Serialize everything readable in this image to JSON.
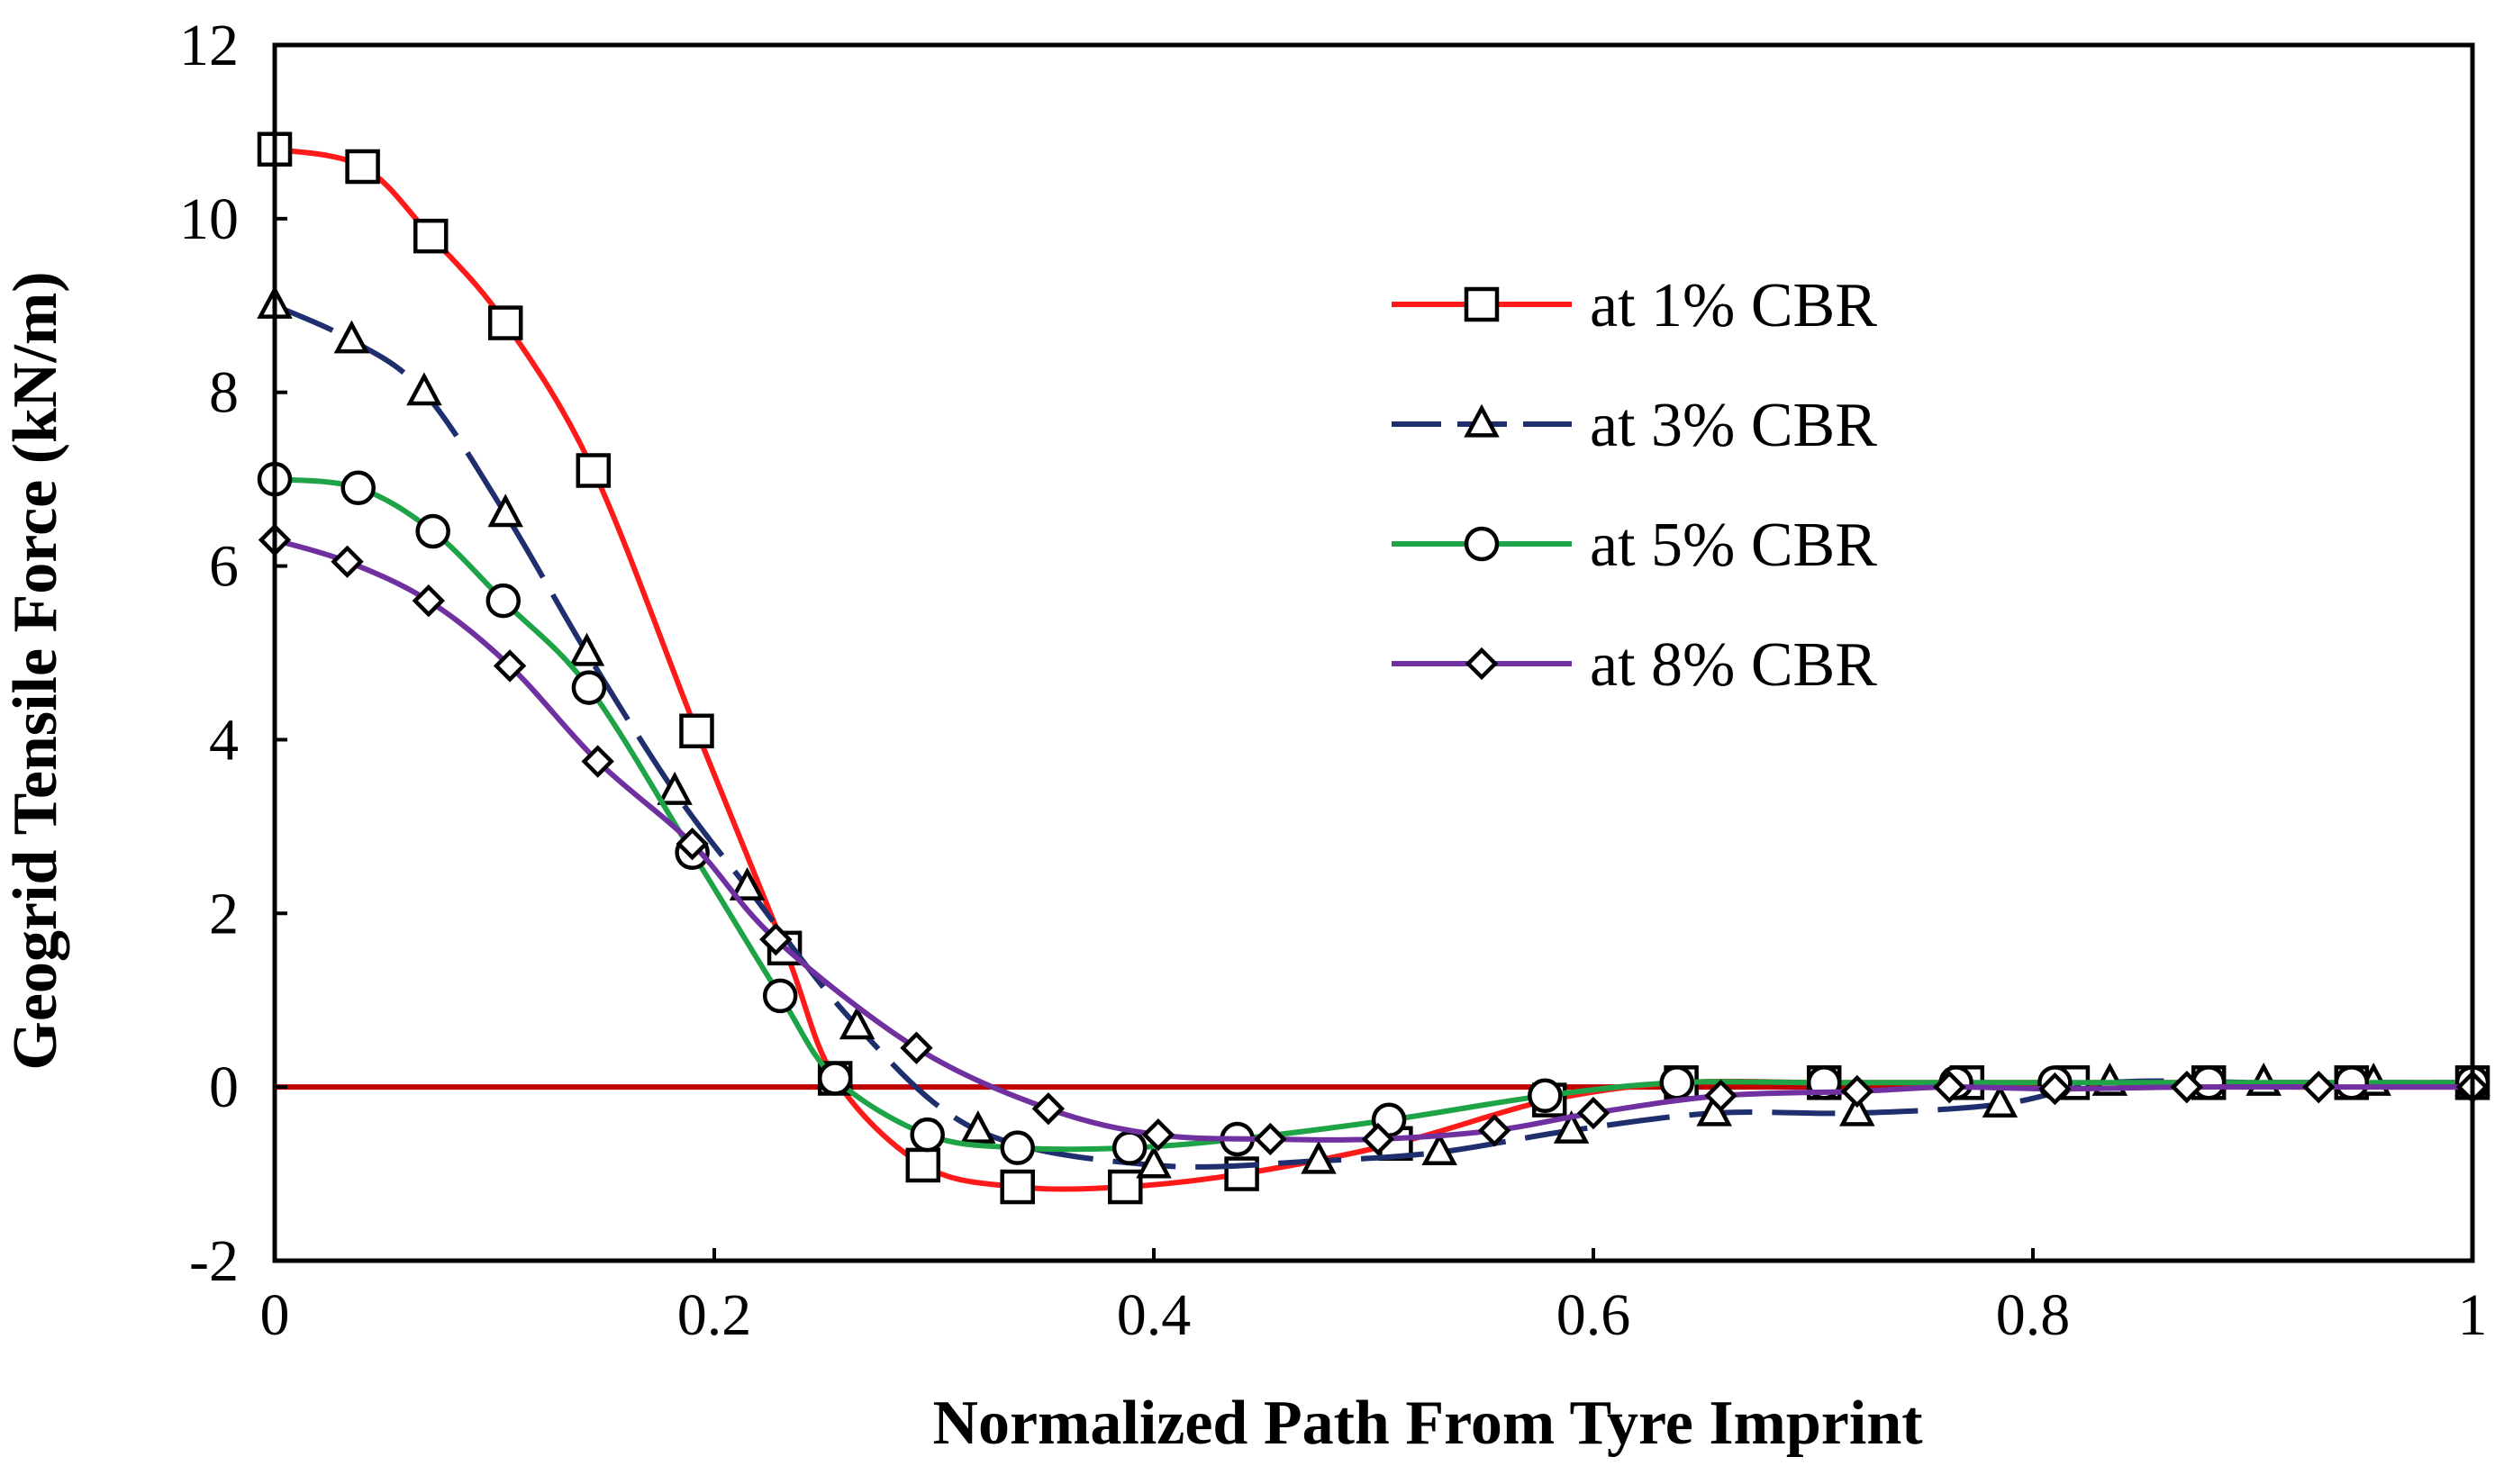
{
  "chart_data": {
    "type": "line",
    "title": "",
    "xlabel": "Normalized Path From Tyre Imprint",
    "ylabel": "Geogrid Tensile Force (kN/m)",
    "xlim": [
      0,
      1
    ],
    "ylim": [
      -2,
      12
    ],
    "x_ticks": [
      0,
      0.2,
      0.4,
      0.6,
      0.8,
      1
    ],
    "x_tick_labels": [
      "0",
      "0.2",
      "0.4",
      "0.6",
      "0.8",
      "1"
    ],
    "y_ticks": [
      -2,
      0,
      2,
      4,
      6,
      8,
      10,
      12
    ],
    "y_tick_labels": [
      "-2",
      "0",
      "2",
      "4",
      "6",
      "8",
      "10",
      "12"
    ],
    "grid": false,
    "legend_position": "top-right",
    "zero_line_color": "#c00000",
    "series": [
      {
        "name": "at 1% CBR",
        "marker": "square",
        "color": "#ff1a1a",
        "dash": "solid",
        "x": [
          0,
          0.04,
          0.071,
          0.105,
          0.145,
          0.192,
          0.232,
          0.255,
          0.295,
          0.338,
          0.387,
          0.44,
          0.51,
          0.58,
          0.64,
          0.705,
          0.77,
          0.818,
          0.88,
          0.945,
          1.0
        ],
        "y": [
          10.8,
          10.6,
          9.8,
          8.8,
          7.1,
          4.1,
          1.6,
          0.1,
          -0.9,
          -1.15,
          -1.15,
          -1.0,
          -0.65,
          -0.15,
          0.05,
          0.05,
          0.05,
          0.05,
          0.05,
          0.05,
          0.05
        ]
      },
      {
        "name": "at 3% CBR",
        "marker": "triangle",
        "color": "#1f2f6e",
        "dash": "dashed",
        "x": [
          0,
          0.035,
          0.068,
          0.105,
          0.142,
          0.182,
          0.215,
          0.265,
          0.32,
          0.4,
          0.475,
          0.53,
          0.59,
          0.655,
          0.72,
          0.785,
          0.835,
          0.905,
          0.955,
          1.0
        ],
        "y": [
          9.0,
          8.6,
          8.0,
          6.6,
          5.0,
          3.4,
          2.3,
          0.7,
          -0.5,
          -0.9,
          -0.85,
          -0.75,
          -0.5,
          -0.3,
          -0.3,
          -0.2,
          0.05,
          0.05,
          0.05,
          0.05
        ]
      },
      {
        "name": "at 5% CBR",
        "marker": "circle",
        "color": "#1fa347",
        "dash": "solid",
        "x": [
          0,
          0.038,
          0.072,
          0.104,
          0.143,
          0.19,
          0.23,
          0.255,
          0.297,
          0.338,
          0.389,
          0.438,
          0.507,
          0.578,
          0.638,
          0.705,
          0.765,
          0.81,
          0.88,
          0.945,
          1.0
        ],
        "y": [
          7.0,
          6.9,
          6.4,
          5.6,
          4.6,
          2.7,
          1.05,
          0.1,
          -0.55,
          -0.7,
          -0.7,
          -0.6,
          -0.38,
          -0.1,
          0.05,
          0.05,
          0.05,
          0.05,
          0.05,
          0.05,
          0.05
        ]
      },
      {
        "name": "at 8% CBR",
        "marker": "diamond",
        "color": "#7030a0",
        "dash": "solid",
        "x": [
          0,
          0.033,
          0.07,
          0.107,
          0.147,
          0.19,
          0.228,
          0.292,
          0.352,
          0.402,
          0.453,
          0.502,
          0.555,
          0.6,
          0.658,
          0.72,
          0.762,
          0.81,
          0.87,
          0.93,
          1.0
        ],
        "y": [
          6.3,
          6.05,
          5.6,
          4.85,
          3.75,
          2.8,
          1.7,
          0.45,
          -0.25,
          -0.55,
          -0.6,
          -0.6,
          -0.5,
          -0.3,
          -0.1,
          -0.05,
          0.0,
          -0.02,
          0.0,
          0.0,
          0.0
        ]
      }
    ]
  }
}
